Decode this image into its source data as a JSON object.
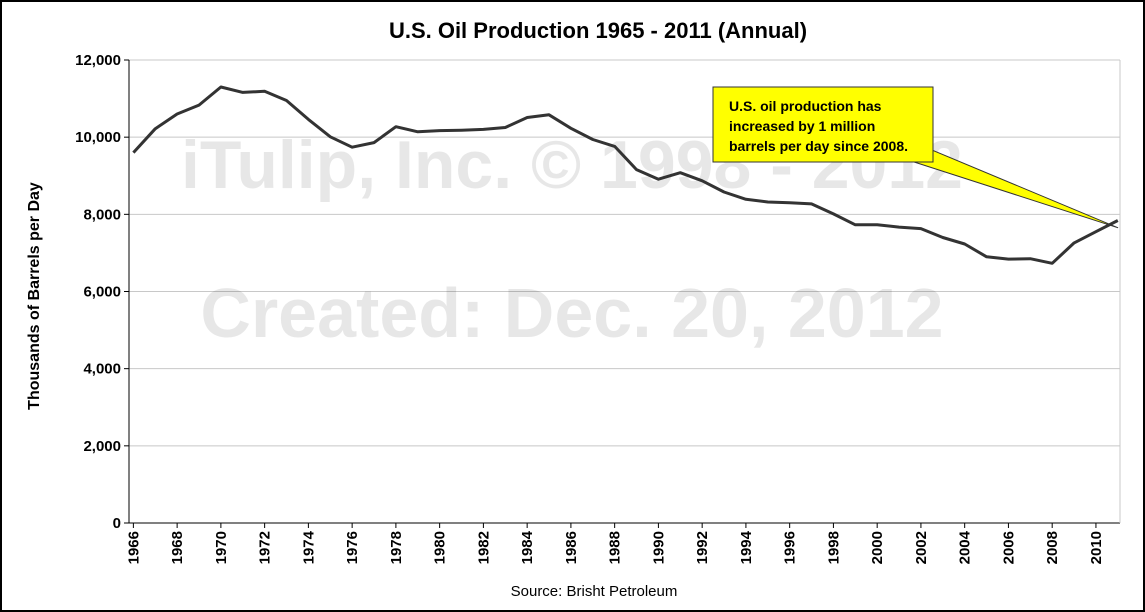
{
  "chart_data": {
    "type": "line",
    "title": "U.S. Oil Production 1965 - 2011 (Annual)",
    "ylabel": "Thousands of Barrels per Day",
    "xlabel": "",
    "source": "Source: Brisht Petroleum",
    "ylim": [
      0,
      12000
    ],
    "y_ticks": [
      "0",
      "2,000",
      "4,000",
      "6,000",
      "8,000",
      "10,000",
      "12,000"
    ],
    "x_tick_labels": [
      "1966",
      "1968",
      "1970",
      "1972",
      "1974",
      "1976",
      "1978",
      "1980",
      "1982",
      "1984",
      "1986",
      "1988",
      "1990",
      "1992",
      "1994",
      "1996",
      "1998",
      "2000",
      "2002",
      "2004",
      "2006",
      "2008",
      "2010"
    ],
    "grid": true,
    "line_color": "#333333",
    "series": [
      {
        "x": [
          1966,
          1967,
          1968,
          1969,
          1970,
          1971,
          1972,
          1973,
          1974,
          1975,
          1976,
          1977,
          1978,
          1979,
          1980,
          1981,
          1982,
          1983,
          1984,
          1985,
          1986,
          1987,
          1988,
          1989,
          1990,
          1991,
          1992,
          1993,
          1994,
          1995,
          1996,
          1997,
          1998,
          1999,
          2000,
          2001,
          2002,
          2003,
          2004,
          2005,
          2006,
          2007,
          2008,
          2009,
          2010,
          2011
        ],
        "values": [
          9600,
          10220,
          10600,
          10830,
          11300,
          11160,
          11190,
          10950,
          10460,
          10010,
          9740,
          9860,
          10270,
          10140,
          10170,
          10180,
          10200,
          10250,
          10510,
          10580,
          10230,
          9940,
          9760,
          9160,
          8910,
          9080,
          8870,
          8580,
          8390,
          8320,
          8300,
          8270,
          8010,
          7730,
          7730,
          7670,
          7630,
          7400,
          7230,
          6900,
          6840,
          6850,
          6730,
          7260,
          7550,
          7840
        ]
      }
    ],
    "annotation": {
      "lines": [
        "U.S. oil production has",
        "increased by 1 million",
        "barrels per day since 2008."
      ],
      "background": "#ffff00",
      "points_to": {
        "x": 2009,
        "y": 7650
      }
    },
    "watermark": {
      "line1": "iTulip, Inc. © 1998 - 2012",
      "line2": "Created: Dec. 20, 2012"
    }
  }
}
